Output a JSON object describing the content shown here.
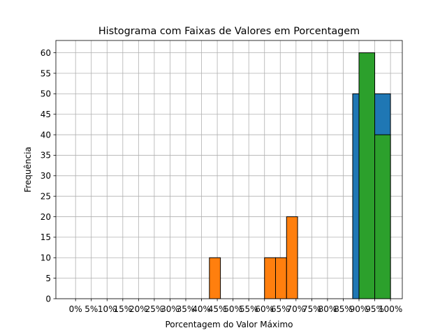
{
  "chart_data": {
    "type": "bar",
    "title": "Histograma com Faixas de Valores em Porcentagem",
    "xlabel": "Porcentagem do Valor Máximo",
    "ylabel": "Frequência",
    "xlim": [
      -6.25,
      103.75
    ],
    "ylim": [
      0,
      63
    ],
    "grid": true,
    "x_ticks": [
      0,
      5,
      10,
      15,
      20,
      25,
      30,
      35,
      40,
      45,
      50,
      55,
      60,
      65,
      70,
      75,
      80,
      85,
      90,
      95,
      100
    ],
    "x_tick_labels": [
      "0%",
      "5%",
      "10%",
      "15%",
      "20%",
      "25%",
      "30%",
      "35%",
      "40%",
      "45%",
      "50%",
      "55%",
      "60%",
      "65%",
      "70%",
      "75%",
      "80%",
      "85%",
      "90%",
      "95%",
      "100%"
    ],
    "y_ticks": [
      0,
      5,
      10,
      15,
      20,
      25,
      30,
      35,
      40,
      45,
      50,
      55,
      60
    ],
    "series": [
      {
        "color": "#1f77b4",
        "bars": [
          {
            "x_start": 88.0,
            "x_end": 94.0,
            "value": 50
          },
          {
            "x_start": 94.0,
            "x_end": 100.0,
            "value": 50
          }
        ]
      },
      {
        "color": "#ff7f0e",
        "bars": [
          {
            "x_start": 42.5,
            "x_end": 46.0,
            "value": 10
          },
          {
            "x_start": 60.0,
            "x_end": 63.5,
            "value": 10
          },
          {
            "x_start": 63.5,
            "x_end": 67.0,
            "value": 10
          },
          {
            "x_start": 67.0,
            "x_end": 70.5,
            "value": 20
          }
        ]
      },
      {
        "color": "#2ca02c",
        "bars": [
          {
            "x_start": 90.0,
            "x_end": 95.0,
            "value": 60
          },
          {
            "x_start": 95.0,
            "x_end": 100.0,
            "value": 40
          }
        ]
      }
    ]
  }
}
